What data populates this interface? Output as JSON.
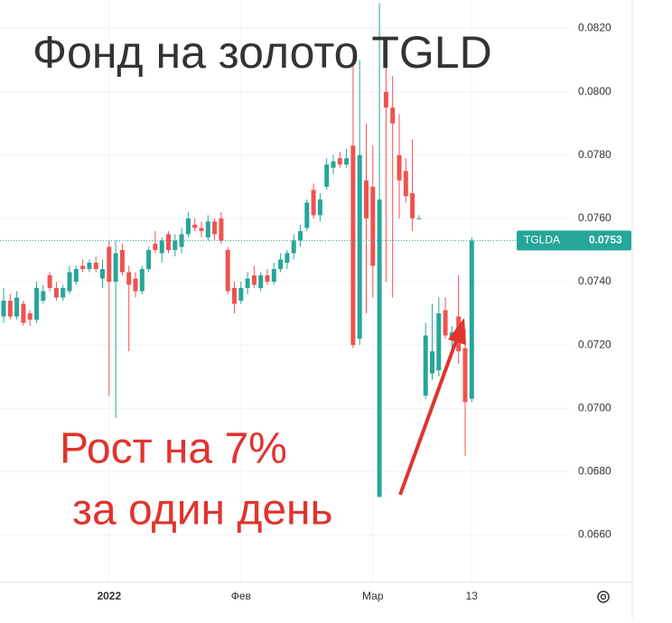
{
  "chart_data": {
    "type": "candlestick",
    "title": "Фонд на золото TGLD",
    "annotation": [
      "Рост на 7%",
      "за один день"
    ],
    "up_color": "#26a69a",
    "down_color": "#ef5350",
    "grid": true,
    "categories": [
      null,
      null,
      null,
      null,
      null,
      null,
      null,
      null,
      null,
      null,
      null,
      null,
      null,
      null,
      null,
      null,
      "2022",
      null,
      null,
      null,
      null,
      null,
      null,
      null,
      null,
      null,
      null,
      null,
      null,
      null,
      null,
      null,
      null,
      null,
      null,
      null,
      "Фев",
      null,
      null,
      null,
      null,
      null,
      null,
      null,
      null,
      null,
      null,
      null,
      null,
      null,
      null,
      null,
      null,
      null,
      null,
      null,
      "Мар",
      null,
      null,
      null,
      null,
      null,
      null,
      null,
      null,
      null,
      null,
      null,
      null,
      null,
      null,
      "13"
    ],
    "open": [
      0.0729,
      0.0734,
      0.0729,
      0.0733,
      0.073,
      0.0728,
      0.0734,
      0.0742,
      0.0738,
      0.0735,
      0.0737,
      0.074,
      0.0745,
      0.0744,
      0.0746,
      0.0741,
      0.0751,
      0.074,
      0.075,
      0.0743,
      0.0741,
      0.0737,
      0.0744,
      0.0752,
      0.0749,
      0.0755,
      0.075,
      0.0751,
      0.0755,
      0.0758,
      0.0757,
      0.0754,
      0.0759,
      0.076,
      0.075,
      0.0738,
      0.0734,
      0.0738,
      0.0742,
      0.0738,
      0.0742,
      0.074,
      0.0744,
      0.0746,
      0.0749,
      0.0753,
      0.0757,
      0.0769,
      0.0761,
      0.077,
      0.0776,
      0.0779,
      0.0777,
      0.0783,
      0.0722,
      0.0772,
      0.077,
      0.0672,
      0.08,
      0.0795,
      0.078,
      0.0775,
      0.0768,
      0.076,
      0.0704,
      0.0711,
      0.0712,
      0.0731,
      0.0722,
      0.0729,
      0.0719,
      0.0703
    ],
    "high": [
      0.0738,
      0.0736,
      0.0737,
      0.0734,
      0.0731,
      0.074,
      0.0739,
      0.0743,
      0.074,
      0.0739,
      0.0745,
      0.0745,
      0.0747,
      0.0747,
      0.0748,
      0.0747,
      0.0753,
      0.0753,
      0.0752,
      0.0745,
      0.0743,
      0.0745,
      0.0751,
      0.0756,
      0.0754,
      0.0756,
      0.0755,
      0.0757,
      0.0762,
      0.076,
      0.0759,
      0.0761,
      0.076,
      0.0762,
      0.0751,
      0.074,
      0.074,
      0.0743,
      0.0745,
      0.0743,
      0.0744,
      0.0746,
      0.0749,
      0.075,
      0.0755,
      0.0758,
      0.0766,
      0.0771,
      0.0768,
      0.0779,
      0.078,
      0.0781,
      0.0782,
      0.0808,
      0.081,
      0.079,
      0.0783,
      0.0828,
      0.081,
      0.0805,
      0.0793,
      0.0779,
      0.0785,
      0.0761,
      0.0727,
      0.0733,
      0.0735,
      0.0735,
      0.0726,
      0.0742,
      0.0725,
      0.0754
    ],
    "low": [
      0.0727,
      0.0728,
      0.0728,
      0.0726,
      0.0726,
      0.0727,
      0.0733,
      0.0737,
      0.0734,
      0.0734,
      0.0736,
      0.0739,
      0.0743,
      0.0743,
      0.0743,
      0.0738,
      0.0704,
      0.0697,
      0.0742,
      0.0718,
      0.0735,
      0.0736,
      0.0743,
      0.0749,
      0.0746,
      0.0749,
      0.0748,
      0.0749,
      0.0754,
      0.0756,
      0.0754,
      0.0753,
      0.0753,
      0.0752,
      0.0736,
      0.073,
      0.0733,
      0.0736,
      0.0738,
      0.0737,
      0.0739,
      0.0739,
      0.0743,
      0.0744,
      0.0747,
      0.0751,
      0.0756,
      0.076,
      0.0759,
      0.0769,
      0.0774,
      0.0776,
      0.0776,
      0.0719,
      0.072,
      0.073,
      0.0735,
      0.0672,
      0.074,
      0.0735,
      0.076,
      0.0765,
      0.0756,
      0.076,
      0.0703,
      0.0709,
      0.071,
      0.0722,
      0.0718,
      0.0714,
      0.0685,
      0.0702
    ],
    "close": [
      0.0734,
      0.0729,
      0.0735,
      0.0727,
      0.0728,
      0.0738,
      0.0737,
      0.0738,
      0.0735,
      0.0738,
      0.0743,
      0.0744,
      0.0744,
      0.0746,
      0.0744,
      0.0744,
      0.074,
      0.0749,
      0.0743,
      0.0739,
      0.0737,
      0.0744,
      0.075,
      0.075,
      0.0753,
      0.075,
      0.0753,
      0.0755,
      0.076,
      0.0757,
      0.0756,
      0.0759,
      0.0755,
      0.0753,
      0.0737,
      0.0733,
      0.0738,
      0.0741,
      0.0739,
      0.0742,
      0.074,
      0.0744,
      0.0747,
      0.0749,
      0.0753,
      0.0756,
      0.0765,
      0.0761,
      0.0766,
      0.0777,
      0.0778,
      0.0777,
      0.0779,
      0.072,
      0.078,
      0.076,
      0.0745,
      0.0766,
      0.0795,
      0.079,
      0.0772,
      0.0767,
      0.076,
      0.076,
      0.0723,
      0.0718,
      0.073,
      0.0723,
      0.0724,
      0.0718,
      0.0702,
      0.0753
    ],
    "ylim": [
      0.0645,
      0.0829
    ],
    "yticks": [
      {
        "value": 0.066,
        "label": "0.0660"
      },
      {
        "value": 0.068,
        "label": "0.0680"
      },
      {
        "value": 0.07,
        "label": "0.0700"
      },
      {
        "value": 0.072,
        "label": "0.0720"
      },
      {
        "value": 0.074,
        "label": "0.0740"
      },
      {
        "value": 0.076,
        "label": "0.0760"
      },
      {
        "value": 0.078,
        "label": "0.0780"
      },
      {
        "value": 0.08,
        "label": "0.0800"
      },
      {
        "value": 0.082,
        "label": "0.0820"
      }
    ],
    "last_price": {
      "symbol": "TGLDA",
      "value": 0.0753
    }
  }
}
